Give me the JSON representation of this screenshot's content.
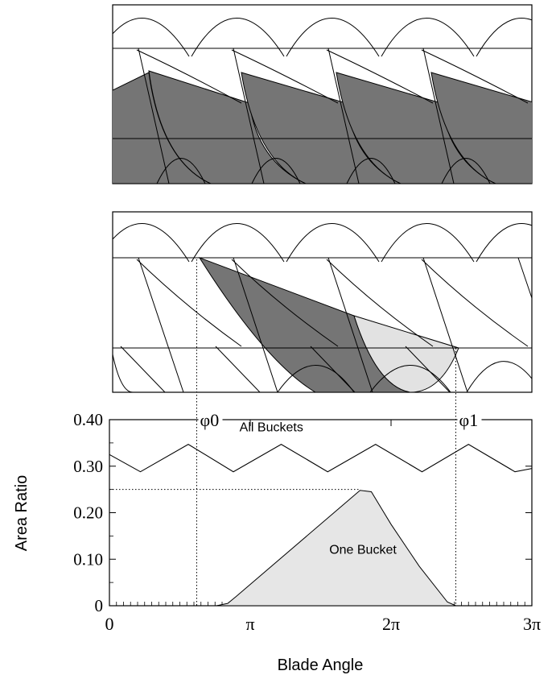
{
  "chart_data": [
    {
      "type": "diagram",
      "panel": "top-geometry"
    },
    {
      "type": "diagram",
      "panel": "middle-geometry",
      "markers": [
        "φ0",
        "φ1"
      ]
    },
    {
      "type": "area",
      "xlabel": "Blade Angle",
      "ylabel": "Area Ratio",
      "xlim": [
        0,
        3
      ],
      "x_unit": "π",
      "ylim": [
        0,
        0.4
      ],
      "x_ticks": [
        {
          "value": 0,
          "label": "0"
        },
        {
          "value": 1,
          "label": "π"
        },
        {
          "value": 2,
          "label": "2π"
        },
        {
          "value": 3,
          "label": "3π"
        }
      ],
      "y_ticks": [
        {
          "value": 0,
          "label": "0"
        },
        {
          "value": 0.1,
          "label": "0.10"
        },
        {
          "value": 0.2,
          "label": "0.20"
        },
        {
          "value": 0.3,
          "label": "0.30"
        },
        {
          "value": 0.4,
          "label": "0.40"
        }
      ],
      "markers": [
        {
          "label": "φ0",
          "x": 0.62
        },
        {
          "label": "φ1",
          "x": 2.46
        }
      ],
      "reference_line": {
        "y": 0.25,
        "x_to": 1.78
      },
      "series": [
        {
          "name": "All Buckets",
          "x": [
            0.0,
            0.22,
            0.56,
            0.88,
            1.22,
            1.55,
            1.89,
            2.22,
            2.55,
            2.88,
            3.0
          ],
          "y": [
            0.325,
            0.288,
            0.347,
            0.288,
            0.347,
            0.288,
            0.347,
            0.288,
            0.347,
            0.288,
            0.295
          ]
        },
        {
          "name": "One Bucket",
          "x": [
            0.76,
            0.84,
            0.9,
            1.78,
            1.86,
            2.0,
            2.2,
            2.4,
            2.46
          ],
          "y": [
            0.0,
            0.005,
            0.02,
            0.248,
            0.245,
            0.175,
            0.085,
            0.008,
            0.0
          ]
        }
      ]
    }
  ]
}
